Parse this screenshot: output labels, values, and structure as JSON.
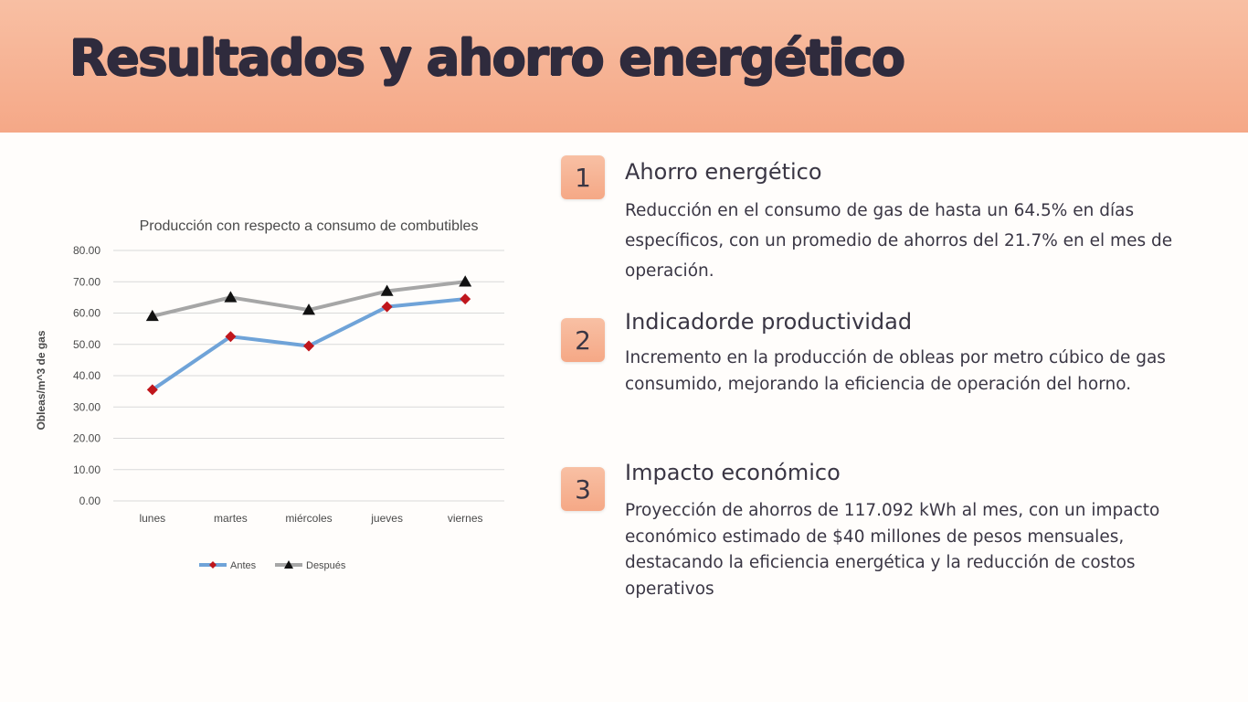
{
  "slide": {
    "title": "Resultados y ahorro energético"
  },
  "items": [
    {
      "number": "1",
      "title": "Ahorro energético",
      "description": "Reducción en el consumo de gas de hasta un 64.5% en días específicos, con un promedio de ahorros del 21.7% en el mes de operación."
    },
    {
      "number": "2",
      "title": "Indicadorde productividad",
      "description": "Incremento en la producción de obleas por metro cúbico de gas consumido, mejorando la eficiencia de operación del horno."
    },
    {
      "number": "3",
      "title": "Impacto económico",
      "description": "Proyección de ahorros de 117.092 kWh al mes, con un impacto económico estimado de $40 millones de pesos mensuales, destacando la eficiencia energética y la reducción de costos operativos"
    }
  ],
  "chart_data": {
    "type": "line",
    "title": "Producción con respecto a consumo de combutibles",
    "xlabel": "",
    "ylabel": "Obleas/m^3 de gas",
    "categories": [
      "lunes",
      "martes",
      "miércoles",
      "jueves",
      "viernes"
    ],
    "ylim": [
      0,
      80
    ],
    "yticks": [
      "0.00",
      "10.00",
      "20.00",
      "30.00",
      "40.00",
      "50.00",
      "60.00",
      "70.00",
      "80.00"
    ],
    "grid": true,
    "legend": "bottom",
    "series": [
      {
        "name": "Antes",
        "values": [
          35.5,
          52.5,
          49.5,
          62.0,
          64.5
        ],
        "color": "#6fa3d8",
        "marker": "diamond",
        "marker_color": "#c0161c"
      },
      {
        "name": "Después",
        "values": [
          59.0,
          65.0,
          61.0,
          67.0,
          70.0
        ],
        "color": "#a6a6a6",
        "marker": "triangle",
        "marker_color": "#111111"
      }
    ]
  }
}
